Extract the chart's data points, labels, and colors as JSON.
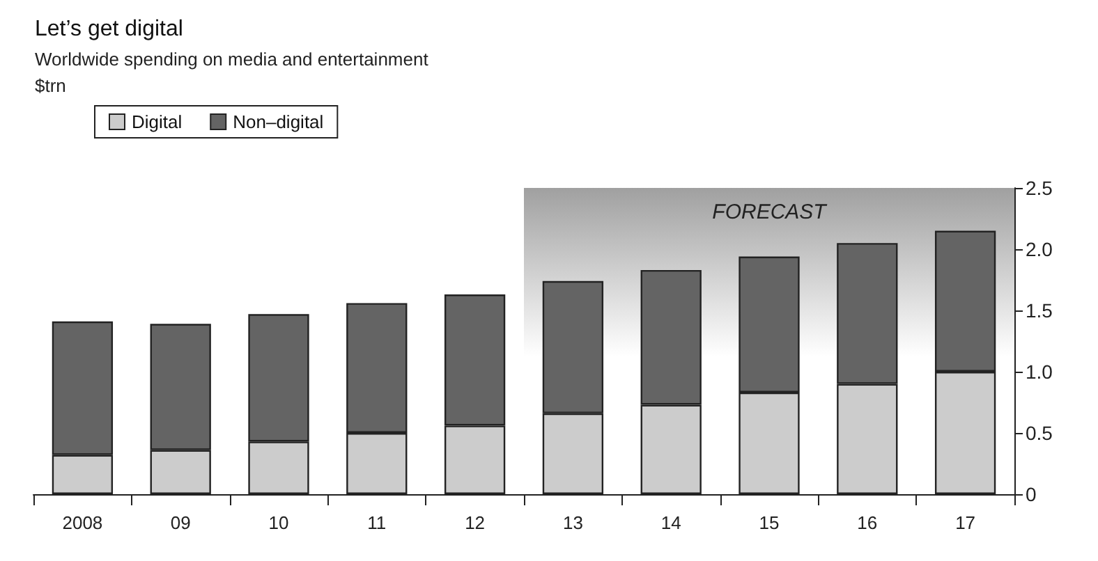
{
  "chart_data": {
    "type": "bar",
    "title": "Let’s get digital",
    "subtitle": "Worldwide spending on media and entertainment",
    "ylabel": "$trn",
    "categories": [
      "2008",
      "09",
      "10",
      "11",
      "12",
      "13",
      "14",
      "15",
      "16",
      "17"
    ],
    "series": [
      {
        "name": "Digital",
        "color": "#cccccc",
        "values": [
          0.32,
          0.36,
          0.43,
          0.5,
          0.56,
          0.66,
          0.73,
          0.83,
          0.9,
          1.0
        ]
      },
      {
        "name": "Non–digital",
        "color": "#646464",
        "values": [
          1.09,
          1.03,
          1.04,
          1.06,
          1.07,
          1.08,
          1.1,
          1.11,
          1.15,
          1.15
        ]
      }
    ],
    "stacked": true,
    "ylim": [
      0,
      2.5
    ],
    "yticks": [
      0,
      0.5,
      {
        "value": 1,
        "label": "1.0"
      },
      1.5,
      {
        "value": 2,
        "label": "2.0"
      },
      2.5
    ],
    "bands": [
      {
        "axis": "x",
        "from": "13",
        "to": "17",
        "label": "FORECAST",
        "color": "#a0a0a0"
      }
    ],
    "legend": "top left",
    "grid": false
  }
}
